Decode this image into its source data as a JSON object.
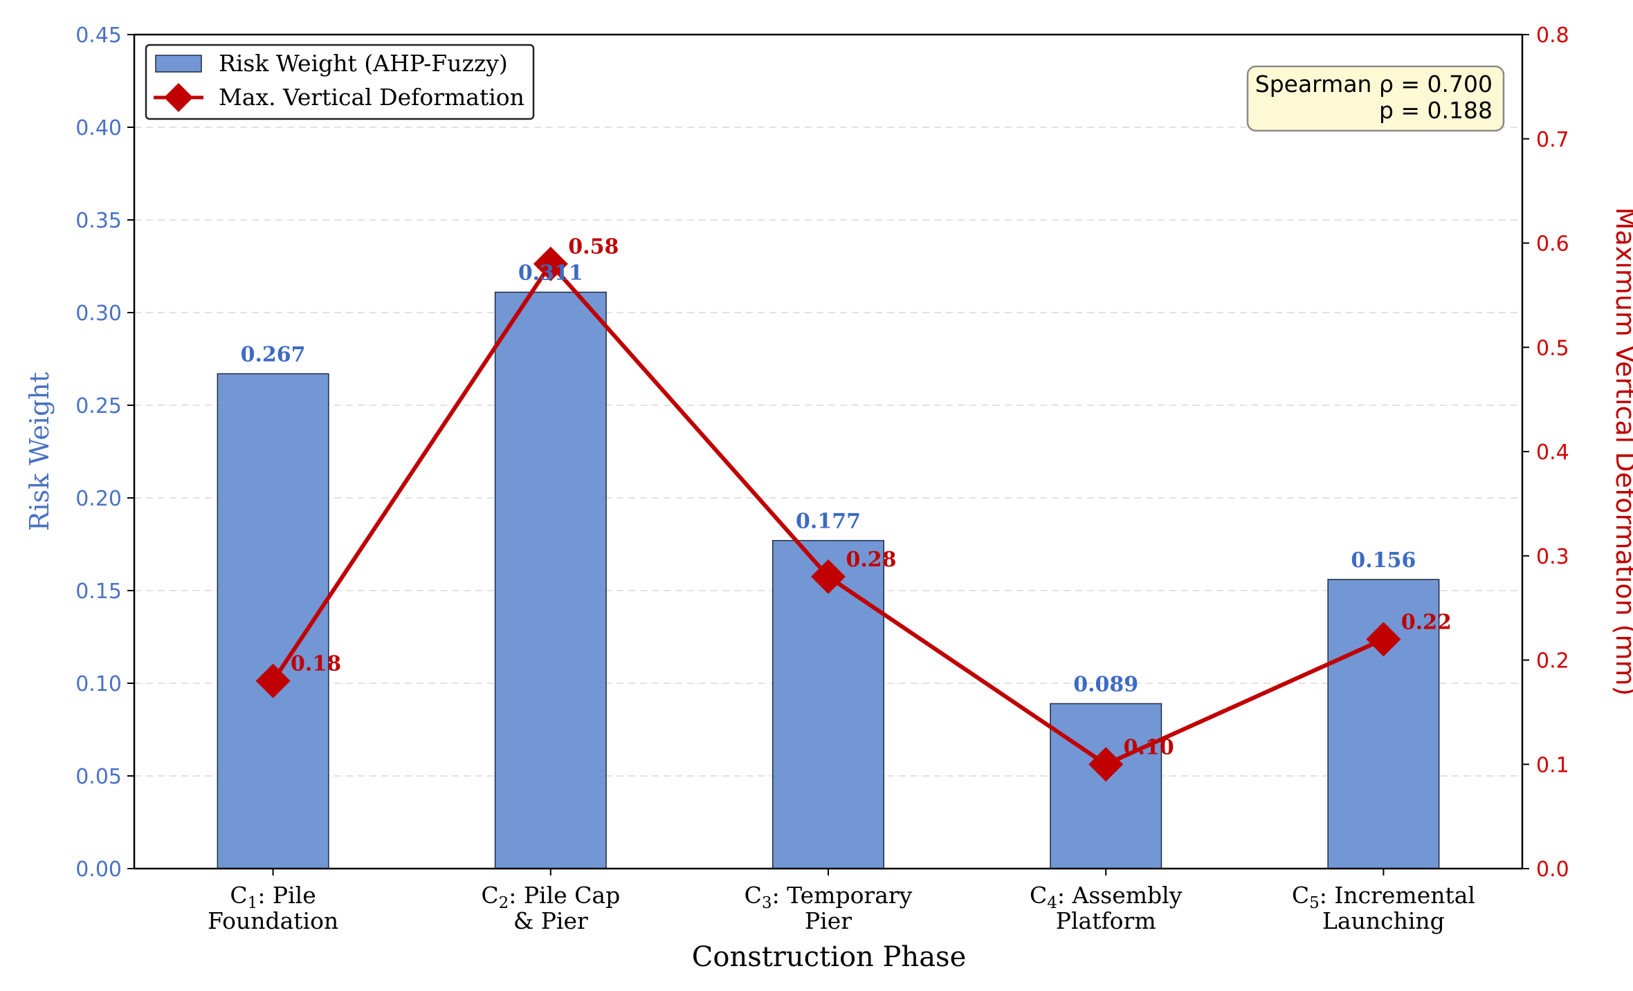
{
  "chart_data": {
    "type": "bar+line",
    "xlabel": "Construction Phase",
    "categories": [
      {
        "prefix": "C",
        "sub": "1",
        "rest": ": Pile",
        "line2": "Foundation"
      },
      {
        "prefix": "C",
        "sub": "2",
        "rest": ": Pile Cap",
        "line2": "& Pier"
      },
      {
        "prefix": "C",
        "sub": "3",
        "rest": ": Temporary",
        "line2": "Pier"
      },
      {
        "prefix": "C",
        "sub": "4",
        "rest": ": Assembly",
        "line2": "Platform"
      },
      {
        "prefix": "C",
        "sub": "5",
        "rest": ": Incremental",
        "line2": "Launching"
      }
    ],
    "series": [
      {
        "name": "Risk Weight (AHP-Fuzzy)",
        "kind": "bar",
        "axis": "left",
        "values": [
          0.267,
          0.311,
          0.177,
          0.089,
          0.156
        ],
        "labels": [
          "0.267",
          "0.311",
          "0.177",
          "0.089",
          "0.156"
        ]
      },
      {
        "name": "Max. Vertical Deformation",
        "kind": "line",
        "marker": "diamond",
        "axis": "right",
        "values": [
          0.18,
          0.58,
          0.28,
          0.1,
          0.22
        ],
        "labels": [
          "0.18",
          "0.58",
          "0.28",
          "0.10",
          "0.22"
        ]
      }
    ],
    "y_left": {
      "label": "Risk Weight",
      "ylim": [
        0,
        0.45
      ],
      "ticks": [
        "0.00",
        "0.05",
        "0.10",
        "0.15",
        "0.20",
        "0.25",
        "0.30",
        "0.35",
        "0.40",
        "0.45"
      ]
    },
    "y_right": {
      "label": "Maximum Vertical Deformation (mm)",
      "ylim": [
        0,
        0.8
      ],
      "ticks": [
        "0.0",
        "0.1",
        "0.2",
        "0.3",
        "0.4",
        "0.5",
        "0.6",
        "0.7",
        "0.8"
      ]
    },
    "grid": "horizontal dashed",
    "legend": "top-left",
    "annotation": {
      "position": "top-right",
      "lines": [
        "Spearman ρ = 0.700",
        "p = 0.188"
      ]
    },
    "colors": {
      "bar_fill": "#7297d4",
      "bar_edge": "#1f2a44",
      "line": "#c00000",
      "left_axis": "#4a72c4",
      "right_axis": "#d40000",
      "annotation_bg": "#fdf9d4"
    }
  }
}
